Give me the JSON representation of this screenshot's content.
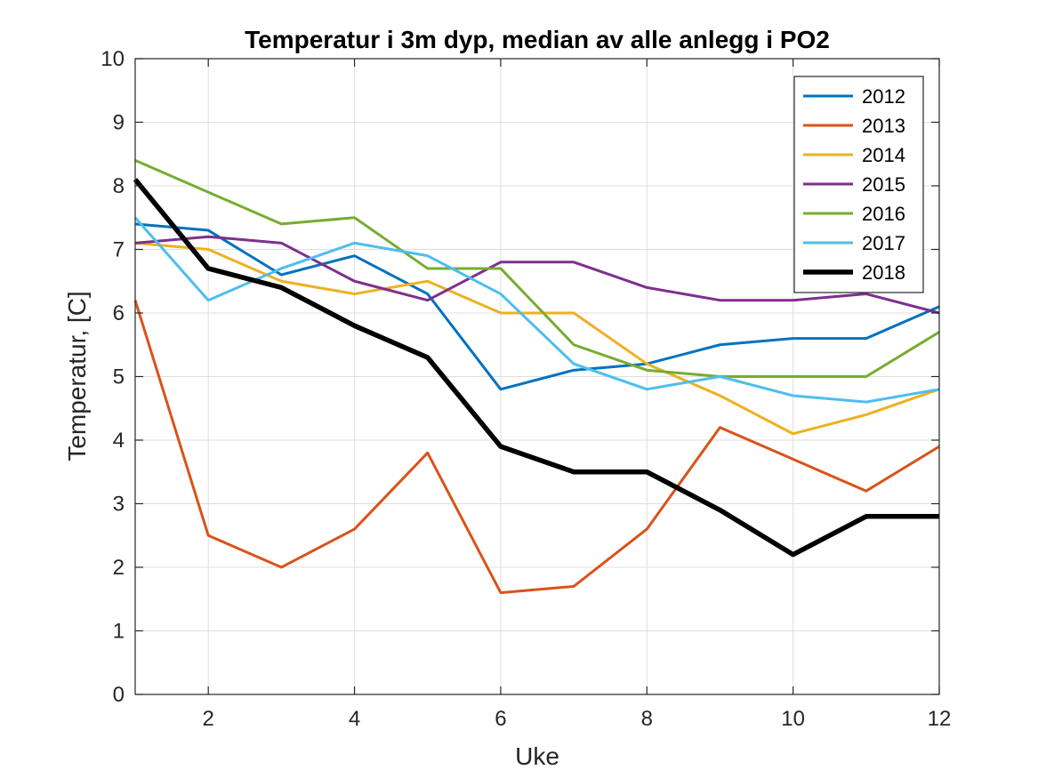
{
  "chart_data": {
    "type": "line",
    "title": "Temperatur i 3m dyp, median av alle anlegg i PO2",
    "xlabel": "Uke",
    "ylabel": "Temperatur, [C]",
    "xlim": [
      1,
      12
    ],
    "ylim": [
      0,
      10
    ],
    "xticks": [
      2,
      4,
      6,
      8,
      10,
      12
    ],
    "yticks": [
      0,
      1,
      2,
      3,
      4,
      5,
      6,
      7,
      8,
      9,
      10
    ],
    "grid": true,
    "legend_position": "top-right",
    "x": [
      1,
      2,
      3,
      4,
      5,
      6,
      7,
      8,
      9,
      10,
      11,
      12
    ],
    "series": [
      {
        "name": "2012",
        "color": "#0072BD",
        "width": "normal",
        "values": [
          7.4,
          7.3,
          6.6,
          6.9,
          6.3,
          4.8,
          5.1,
          5.2,
          5.5,
          5.6,
          5.6,
          6.1
        ]
      },
      {
        "name": "2013",
        "color": "#D95319",
        "width": "normal",
        "values": [
          6.2,
          2.5,
          2.0,
          2.6,
          3.8,
          1.6,
          1.7,
          2.6,
          4.2,
          3.7,
          3.2,
          3.9
        ]
      },
      {
        "name": "2014",
        "color": "#EDB120",
        "width": "normal",
        "values": [
          7.1,
          7.0,
          6.5,
          6.3,
          6.5,
          6.0,
          6.0,
          5.2,
          4.7,
          4.1,
          4.4,
          4.8
        ]
      },
      {
        "name": "2015",
        "color": "#7E2F8E",
        "width": "normal",
        "values": [
          7.1,
          7.2,
          7.1,
          6.5,
          6.2,
          6.8,
          6.8,
          6.4,
          6.2,
          6.2,
          6.3,
          6.0
        ]
      },
      {
        "name": "2016",
        "color": "#77AC30",
        "width": "normal",
        "values": [
          8.4,
          7.9,
          7.4,
          7.5,
          6.7,
          6.7,
          5.5,
          5.1,
          5.0,
          5.0,
          5.0,
          5.7
        ]
      },
      {
        "name": "2017",
        "color": "#4DBEEE",
        "width": "normal",
        "values": [
          7.5,
          6.2,
          6.7,
          7.1,
          6.9,
          6.3,
          5.2,
          4.8,
          5.0,
          4.7,
          4.6,
          4.8
        ]
      },
      {
        "name": "2018",
        "color": "#000000",
        "width": "thick",
        "values": [
          8.1,
          6.7,
          6.4,
          5.8,
          5.3,
          3.9,
          3.5,
          3.5,
          2.9,
          2.2,
          2.8,
          2.8
        ]
      }
    ]
  }
}
